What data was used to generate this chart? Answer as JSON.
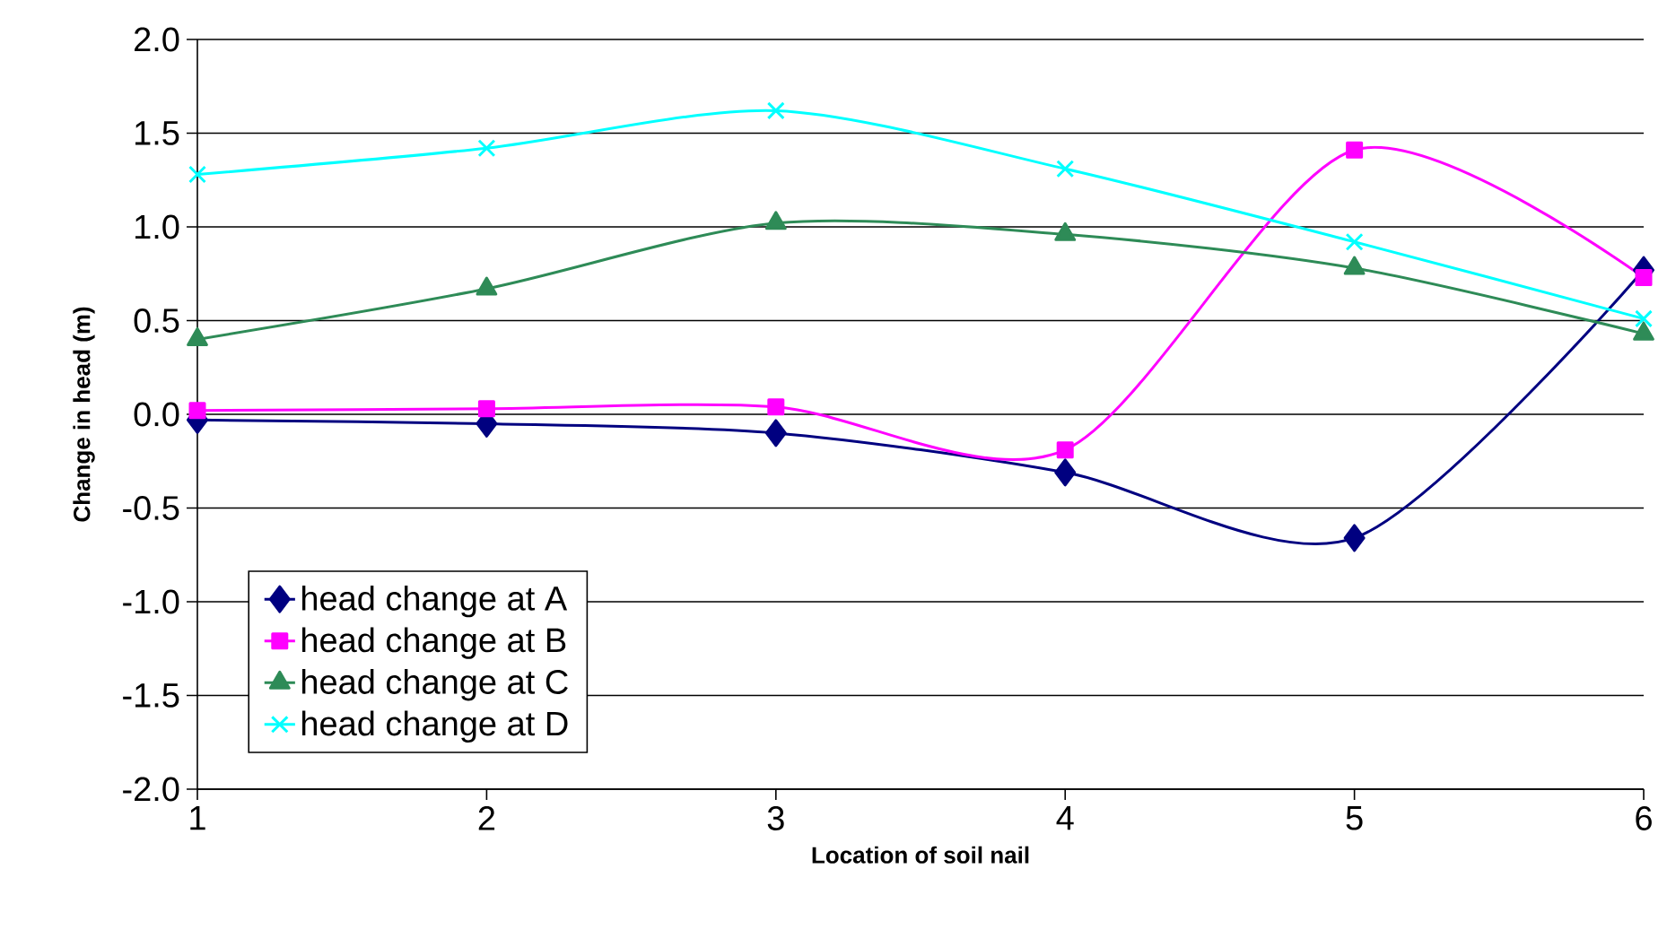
{
  "chart_data": {
    "type": "line",
    "xlabel": "Location of soil nail",
    "ylabel": "Change in head (m)",
    "x": [
      1,
      2,
      3,
      4,
      5,
      6
    ],
    "xlim": [
      1,
      6
    ],
    "xticks": [
      1,
      2,
      3,
      4,
      5,
      6
    ],
    "ylim": [
      -2.0,
      2.0
    ],
    "yticks": [
      {
        "value": -2.0,
        "label": "-2.0"
      },
      {
        "value": -1.5,
        "label": "-1.5"
      },
      {
        "value": -1.0,
        "label": "-1.0"
      },
      {
        "value": -0.5,
        "label": "-0.5"
      },
      {
        "value": 0.0,
        "label": "0.0"
      },
      {
        "value": 0.5,
        "label": "0.5"
      },
      {
        "value": 1.0,
        "label": "1.0"
      },
      {
        "value": 1.5,
        "label": "1.5"
      },
      {
        "value": 2.0,
        "label": "2.0"
      }
    ],
    "grid": "y",
    "legend": "bottom left",
    "line_style": "solid",
    "series": [
      {
        "name": "head  change at A",
        "color": "#000080",
        "marker": "diamond",
        "values": [
          -0.03,
          -0.05,
          -0.1,
          -0.31,
          -0.66,
          0.77
        ]
      },
      {
        "name": "head  change at B",
        "color": "#ff00ff",
        "marker": "square",
        "values": [
          0.02,
          0.03,
          0.04,
          -0.19,
          1.41,
          0.73
        ]
      },
      {
        "name": "head  change at C",
        "color": "#2e8b57",
        "marker": "triangle",
        "values": [
          0.4,
          0.67,
          1.02,
          0.96,
          0.78,
          0.43
        ]
      },
      {
        "name": "head  change at D",
        "color": "#00ffff",
        "marker": "cross",
        "values": [
          1.28,
          1.42,
          1.62,
          1.31,
          0.92,
          0.51
        ]
      }
    ]
  }
}
